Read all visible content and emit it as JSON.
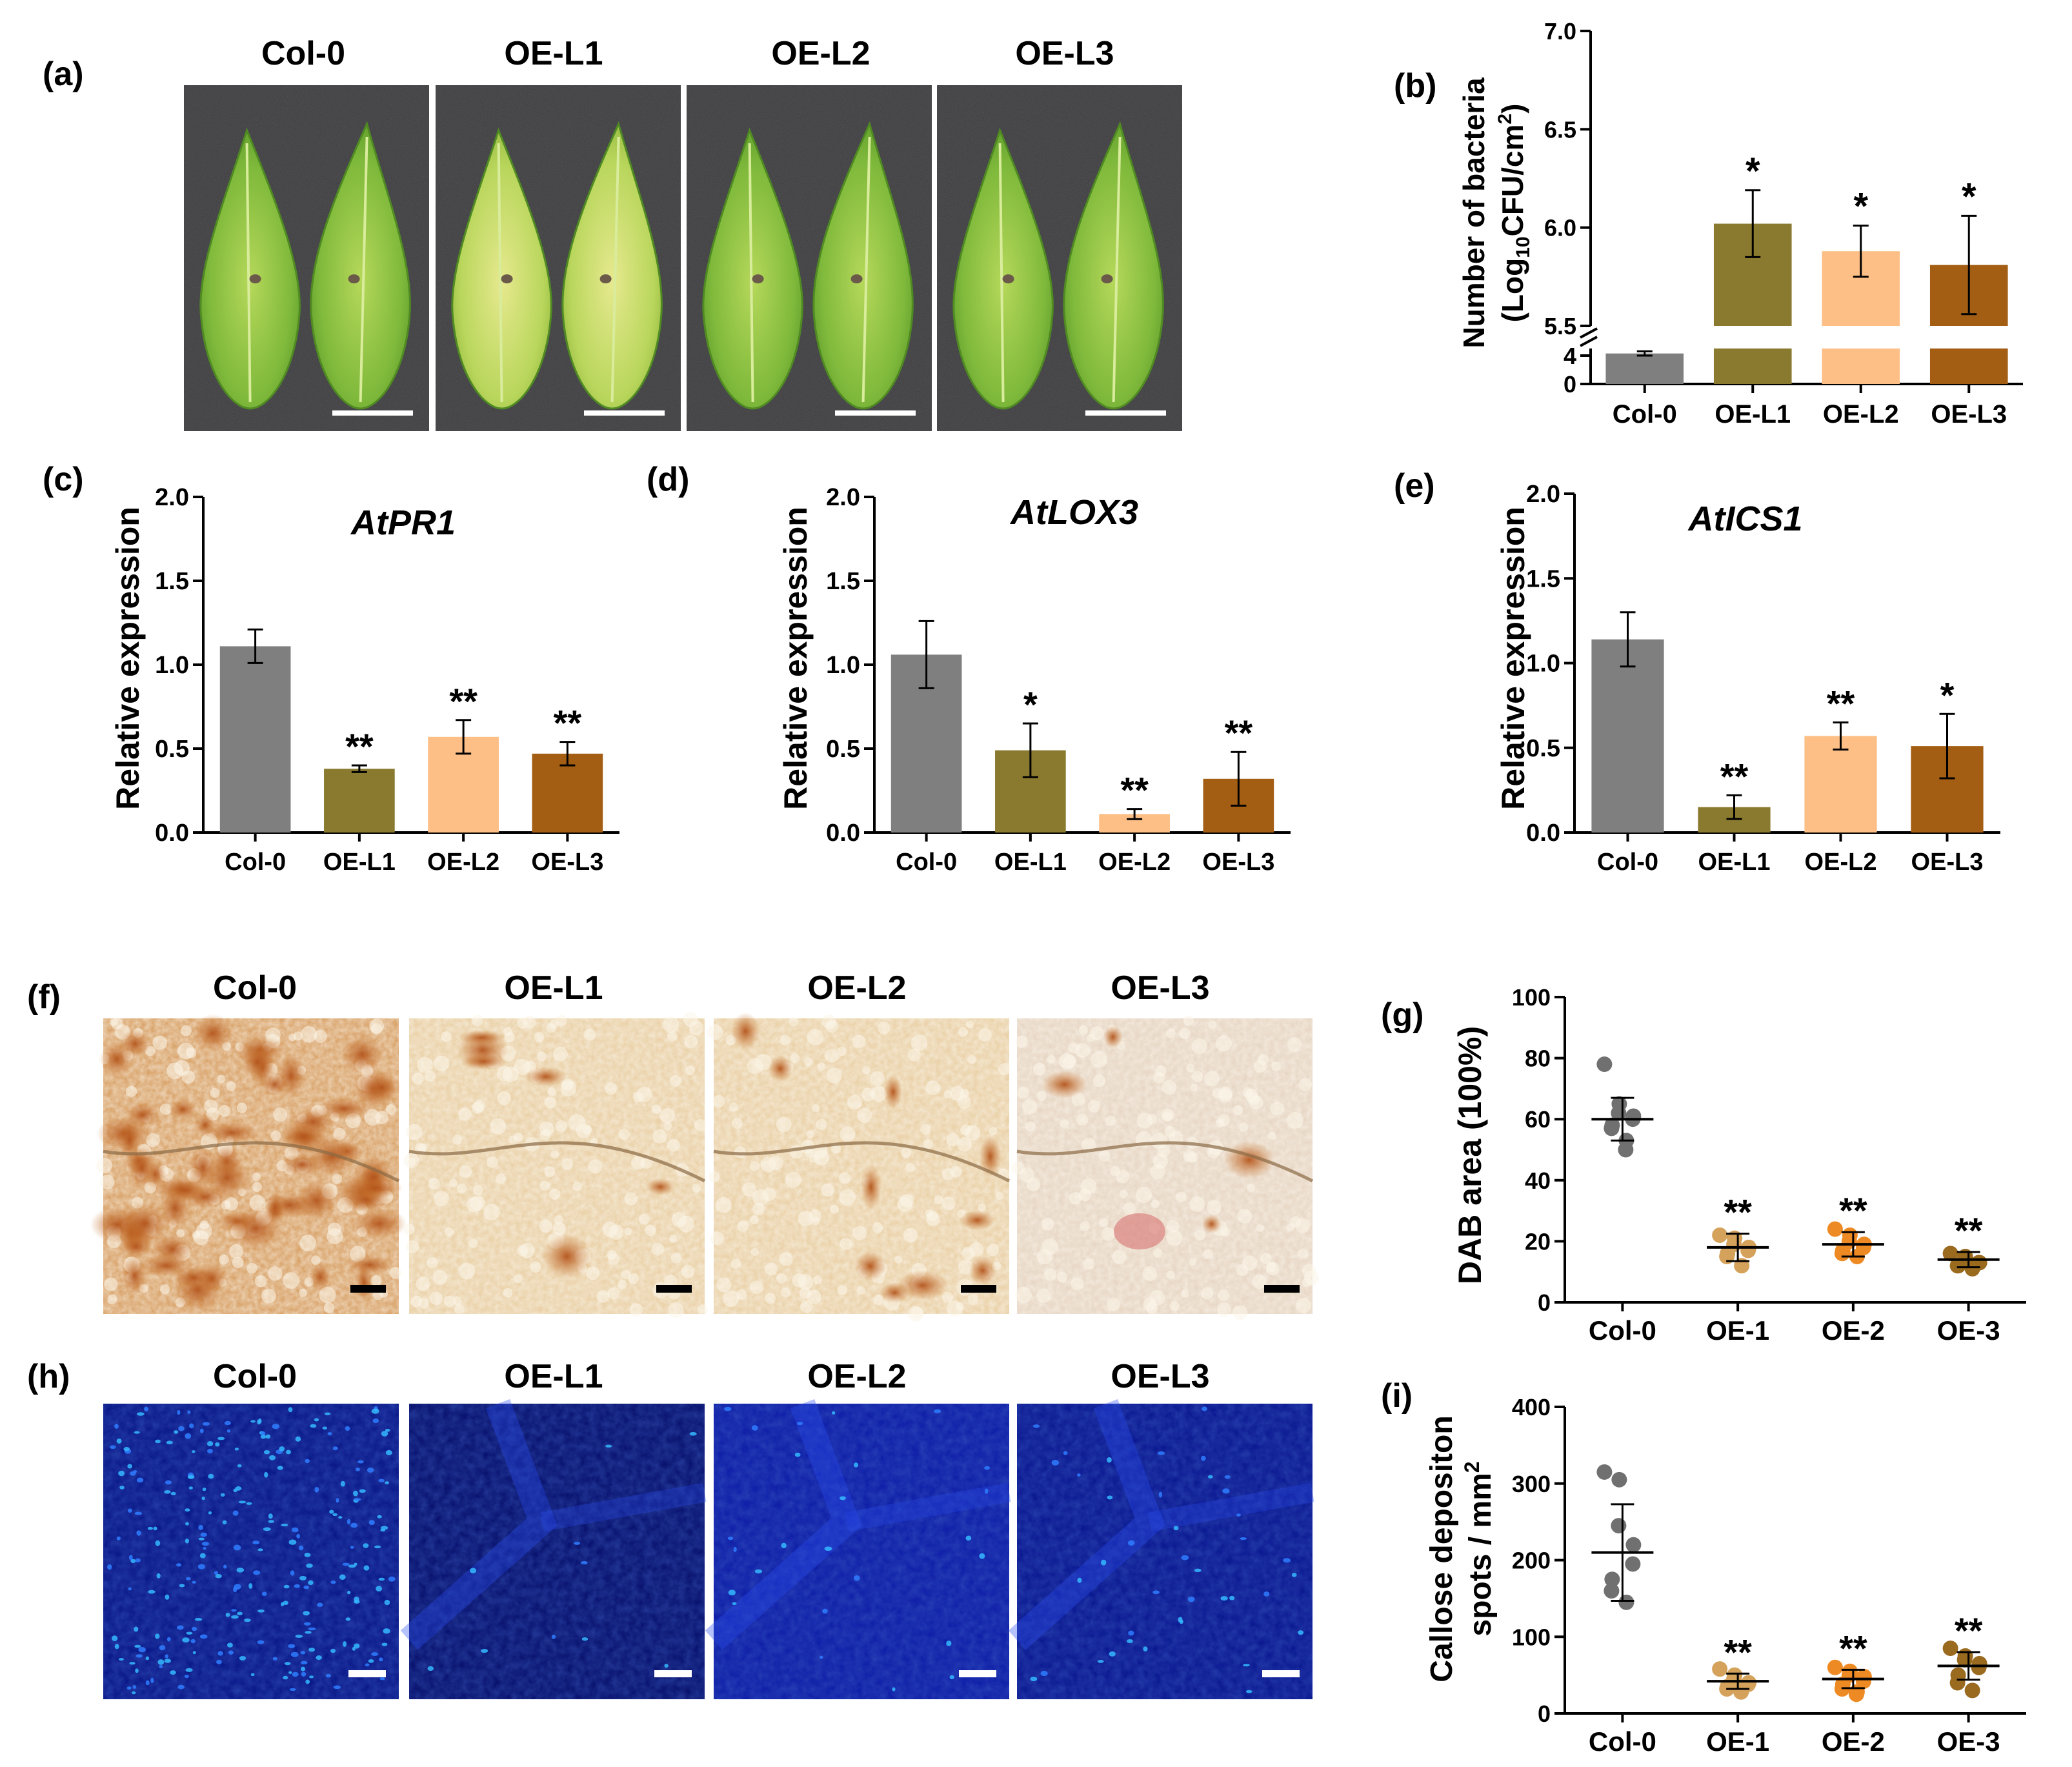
{
  "panel_labels": {
    "a": "(a)",
    "b": "(b)",
    "c": "(c)",
    "d": "(d)",
    "e": "(e)",
    "f": "(f)",
    "g": "(g)",
    "h": "(h)",
    "i": "(i)"
  },
  "photo_row_a": {
    "titles": [
      "Col-0",
      "OE-L1",
      "OE-L2",
      "OE-L3"
    ]
  },
  "photo_row_f": {
    "titles": [
      "Col-0",
      "OE-L1",
      "OE-L2",
      "OE-L3"
    ]
  },
  "photo_row_h": {
    "titles": [
      "Col-0",
      "OE-L1",
      "OE-L2",
      "OE-L3"
    ]
  },
  "colors": {
    "col0": "#7f7f7f",
    "oe_l1": "#8a7a2f",
    "oe_l2": "#fdbf86",
    "oe_l3": "#a35e14",
    "dot_col0": "#707070",
    "dot_oe1": "#d5a25b",
    "dot_oe2": "#ee8a23",
    "dot_oe3": "#9a6a1f",
    "leaf_bg": "#3a3a3c",
    "dab_bg": "#e3ba8a",
    "dab_stain": "#b75f21",
    "fluor_bg": "#0a1a86",
    "fluor_spot": "#36c9ff"
  },
  "chart_data": [
    {
      "id": "b",
      "type": "bar",
      "ylabel_line1": "Number of bacteria",
      "ylabel_line2": "(Log",
      "ylabel_sub": "10",
      "ylabel_mid": "CFU/cm",
      "ylabel_sup": "2",
      "ylabel_end": ")",
      "categories": [
        "Col-0",
        "OE-L1",
        "OE-L2",
        "OE-L3"
      ],
      "values": [
        4.3,
        6.02,
        5.88,
        5.81
      ],
      "errors": [
        0.3,
        0.17,
        0.13,
        0.25
      ],
      "significance": [
        "",
        "*",
        "*",
        "*"
      ],
      "axis_break": {
        "lower_range": [
          0,
          5
        ],
        "upper_range": [
          5.5,
          7.0
        ]
      },
      "yticks_upper": [
        "7.0",
        "6.5",
        "6.0",
        "5.5"
      ],
      "yticks_lower": [
        "4",
        "0"
      ]
    },
    {
      "id": "c",
      "type": "bar",
      "title": "AtPR1",
      "ylabel": "Relative expression",
      "categories": [
        "Col-0",
        "OE-L1",
        "OE-L2",
        "OE-L3"
      ],
      "values": [
        1.11,
        0.38,
        0.57,
        0.47
      ],
      "errors": [
        0.1,
        0.02,
        0.1,
        0.07
      ],
      "significance": [
        "",
        "**",
        "**",
        "**"
      ],
      "ylim": [
        0,
        2.0
      ],
      "yticks": [
        "2.0",
        "1.5",
        "1.0",
        "0.5",
        "0.0"
      ]
    },
    {
      "id": "d",
      "type": "bar",
      "title": "AtLOX3",
      "ylabel": "Relative expression",
      "categories": [
        "Col-0",
        "OE-L1",
        "OE-L2",
        "OE-L3"
      ],
      "values": [
        1.06,
        0.49,
        0.11,
        0.32
      ],
      "errors": [
        0.2,
        0.16,
        0.03,
        0.16
      ],
      "significance": [
        "",
        "*",
        "**",
        "**"
      ],
      "ylim": [
        0,
        2.0
      ],
      "yticks": [
        "2.0",
        "1.5",
        "1.0",
        "0.5",
        "0.0"
      ]
    },
    {
      "id": "e",
      "type": "bar",
      "title": "AtICS1",
      "ylabel": "Relative expression",
      "categories": [
        "Col-0",
        "OE-L1",
        "OE-L2",
        "OE-L3"
      ],
      "values": [
        1.14,
        0.15,
        0.57,
        0.51
      ],
      "errors": [
        0.16,
        0.07,
        0.08,
        0.19
      ],
      "significance": [
        "",
        "**",
        "**",
        "*"
      ],
      "ylim": [
        0,
        2.0
      ],
      "yticks": [
        "2.0",
        "1.5",
        "1.0",
        "0.5",
        "0.0"
      ]
    },
    {
      "id": "g",
      "type": "scatter",
      "ylabel": "DAB area (100%)",
      "categories": [
        "Col-0",
        "OE-1",
        "OE-2",
        "OE-3"
      ],
      "points": [
        [
          78,
          65,
          62,
          61,
          60,
          58,
          57,
          53,
          50
        ],
        [
          22,
          21,
          19,
          18,
          17,
          16,
          15,
          12
        ],
        [
          24,
          22,
          20,
          19,
          18,
          17,
          16,
          15
        ],
        [
          16,
          15,
          14,
          13,
          13,
          12,
          12,
          11
        ]
      ],
      "means": [
        60,
        18,
        19,
        14
      ],
      "sd": [
        7,
        4.5,
        4,
        2.5
      ],
      "significance": [
        "",
        "**",
        "**",
        "**"
      ],
      "ylim": [
        0,
        100
      ],
      "yticks": [
        "100",
        "80",
        "60",
        "40",
        "20",
        "0"
      ]
    },
    {
      "id": "i",
      "type": "scatter",
      "ylabel_line1": "Callose depositon",
      "ylabel_line2": "spots / mm",
      "ylabel_sup": "2",
      "categories": [
        "Col-0",
        "OE-1",
        "OE-2",
        "OE-3"
      ],
      "points": [
        [
          315,
          305,
          245,
          220,
          195,
          175,
          160,
          145
        ],
        [
          58,
          50,
          45,
          40,
          38,
          35,
          32,
          30,
          28
        ],
        [
          60,
          55,
          50,
          48,
          42,
          38,
          32,
          28,
          25
        ],
        [
          85,
          75,
          70,
          65,
          60,
          50,
          40,
          30
        ]
      ],
      "means": [
        210,
        42,
        45,
        62
      ],
      "sd": [
        63,
        10,
        12,
        18
      ],
      "significance": [
        "",
        "**",
        "**",
        "**"
      ],
      "ylim": [
        0,
        400
      ],
      "yticks": [
        "400",
        "300",
        "200",
        "100",
        "0"
      ]
    }
  ]
}
